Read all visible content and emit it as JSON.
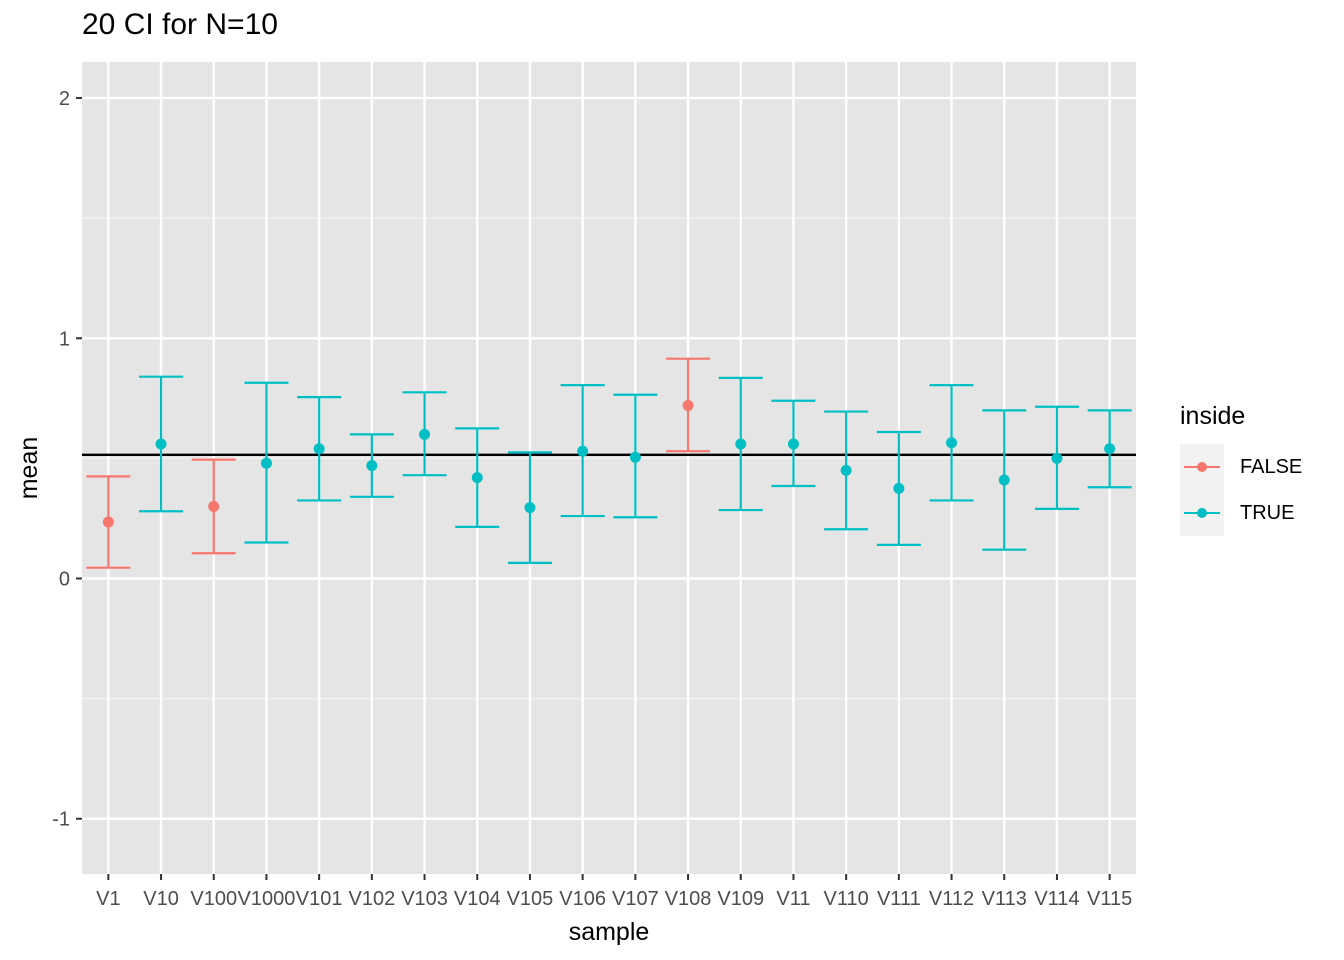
{
  "chart_data": {
    "type": "scatter",
    "title": "20 CI for N=10",
    "xlabel": "sample",
    "ylabel": "mean",
    "ylim": [
      -1.23,
      2.15
    ],
    "yticks": [
      -1,
      0,
      1,
      2
    ],
    "reference_line": 0.515,
    "categories": [
      "V1",
      "V10",
      "V100",
      "V1000",
      "V101",
      "V102",
      "V103",
      "V104",
      "V105",
      "V106",
      "V107",
      "V108",
      "V109",
      "V11",
      "V110",
      "V111",
      "V112",
      "V113",
      "V114",
      "V115"
    ],
    "mean": [
      0.235,
      0.56,
      0.3,
      0.48,
      0.54,
      0.47,
      0.6,
      0.42,
      0.295,
      0.53,
      0.505,
      0.72,
      0.56,
      0.56,
      0.45,
      0.375,
      0.565,
      0.41,
      0.5,
      0.54
    ],
    "lower": [
      0.045,
      0.28,
      0.105,
      0.15,
      0.325,
      0.34,
      0.43,
      0.215,
      0.065,
      0.26,
      0.255,
      0.53,
      0.285,
      0.385,
      0.205,
      0.14,
      0.325,
      0.12,
      0.29,
      0.38
    ],
    "upper": [
      0.425,
      0.84,
      0.495,
      0.815,
      0.755,
      0.6,
      0.775,
      0.625,
      0.525,
      0.805,
      0.765,
      0.915,
      0.835,
      0.74,
      0.695,
      0.61,
      0.805,
      0.7,
      0.715,
      0.7
    ],
    "inside": [
      false,
      true,
      false,
      true,
      true,
      true,
      true,
      true,
      true,
      true,
      true,
      false,
      true,
      true,
      true,
      true,
      true,
      true,
      true,
      true
    ],
    "legend": {
      "title": "inside",
      "position": "right",
      "entries": [
        {
          "label": "FALSE",
          "color": "#F8766D"
        },
        {
          "label": "TRUE",
          "color": "#00BFC4"
        }
      ]
    },
    "grid": true,
    "panel_background": "#e5e5e5"
  }
}
